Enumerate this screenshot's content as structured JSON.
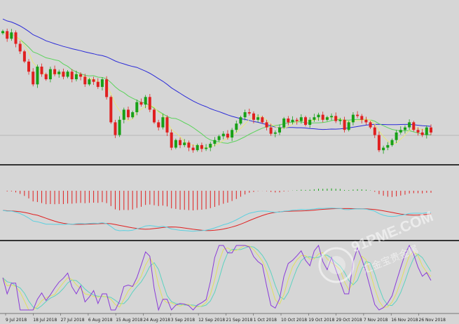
{
  "chart_data": {
    "type": "candlestick",
    "x_tick_labels": [
      "9 Jul 2018",
      "18 Jul 2018",
      "27 Jul 2018",
      "6 Aug 2018",
      "15 Aug 2018",
      "24 Aug 2018",
      "3 Sep 2018",
      "12 Sep 2018",
      "21 Sep 2018",
      "1 Oct 2018",
      "10 Oct 2018",
      "19 Oct 2018",
      "29 Oct 2018",
      "7 Nov 2018",
      "16 Nov 2018",
      "26 Nov 2018"
    ],
    "price_closes": [
      0.746,
      0.743,
      0.7455,
      0.741,
      0.738,
      0.734,
      0.73,
      0.725,
      0.732,
      0.729,
      0.727,
      0.731,
      0.729,
      0.73,
      0.728,
      0.73,
      0.727,
      0.729,
      0.728,
      0.725,
      0.727,
      0.726,
      0.724,
      0.727,
      0.72,
      0.71,
      0.705,
      0.711,
      0.715,
      0.712,
      0.714,
      0.718,
      0.717,
      0.72,
      0.715,
      0.71,
      0.708,
      0.712,
      0.706,
      0.7,
      0.703,
      0.701,
      0.702,
      0.7,
      0.699,
      0.701,
      0.6995,
      0.7,
      0.7015,
      0.703,
      0.7045,
      0.7055,
      0.704,
      0.707,
      0.7095,
      0.712,
      0.714,
      0.7135,
      0.711,
      0.712,
      0.71,
      0.708,
      0.7055,
      0.706,
      0.708,
      0.7115,
      0.71,
      0.711,
      0.7105,
      0.712,
      0.709,
      0.711,
      0.712,
      0.713,
      0.711,
      0.712,
      0.7125,
      0.7105,
      0.711,
      0.707,
      0.71,
      0.713,
      0.7125,
      0.711,
      0.71,
      0.708,
      0.705,
      0.699,
      0.7,
      0.701,
      0.703,
      0.706,
      0.707,
      0.708,
      0.71,
      0.707,
      0.706,
      0.705,
      0.708,
      0.706
    ],
    "panels": [
      "price",
      "macd",
      "stochastic"
    ],
    "colors": {
      "bull": "#17a017",
      "bear": "#e02020",
      "ma_fast": "#e8e87a",
      "ma_mid": "#5cd35c",
      "ma_slow": "#2b2bd8",
      "macd_signal": "#e02020",
      "macd_main": "#5ad0e0",
      "stoch_main": "#8a3ad8",
      "stoch_signal": "#e0e060",
      "stoch_slow": "#5cd3c0",
      "background": "#d6d6d6"
    },
    "watermark": {
      "number": "91",
      "brand": "PME",
      "domain": ".COM",
      "chinese": "汇金宝贵金属"
    }
  }
}
